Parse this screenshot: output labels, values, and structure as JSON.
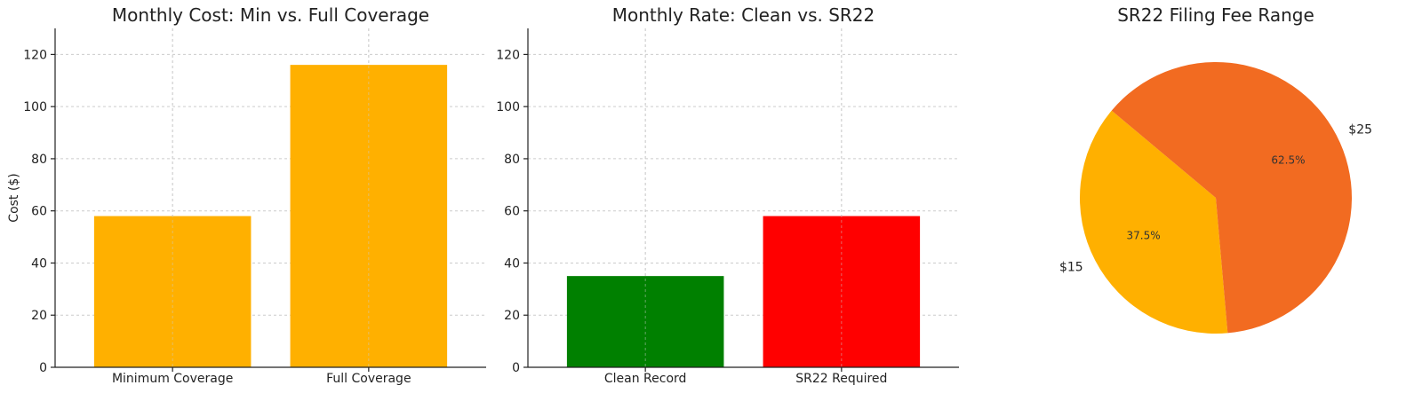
{
  "chart_data": [
    {
      "type": "bar",
      "title": "Monthly Cost: Min vs. Full Coverage",
      "ylabel": "Cost ($)",
      "categories": [
        "Minimum Coverage",
        "Full Coverage"
      ],
      "values": [
        58,
        116
      ],
      "colors": [
        "#ffb000",
        "#ffb000"
      ],
      "ylim": [
        0,
        130
      ],
      "yticks": [
        0,
        20,
        40,
        60,
        80,
        100,
        120
      ],
      "grid": true
    },
    {
      "type": "bar",
      "title": "Monthly Rate: Clean vs. SR22",
      "categories": [
        "Clean Record",
        "SR22 Required"
      ],
      "values": [
        35,
        58
      ],
      "colors": [
        "#008000",
        "#ff0000"
      ],
      "ylim": [
        0,
        130
      ],
      "yticks": [
        0,
        20,
        40,
        60,
        80,
        100,
        120
      ],
      "grid": true
    },
    {
      "type": "pie",
      "title": "SR22 Filing Fee Range",
      "labels": [
        "$15",
        "$25"
      ],
      "values": [
        15,
        25
      ],
      "percent_labels": [
        "37.5%",
        "62.5%"
      ],
      "colors": [
        "#ffb000",
        "#f26b21"
      ],
      "start_angle_deg": 140
    }
  ]
}
